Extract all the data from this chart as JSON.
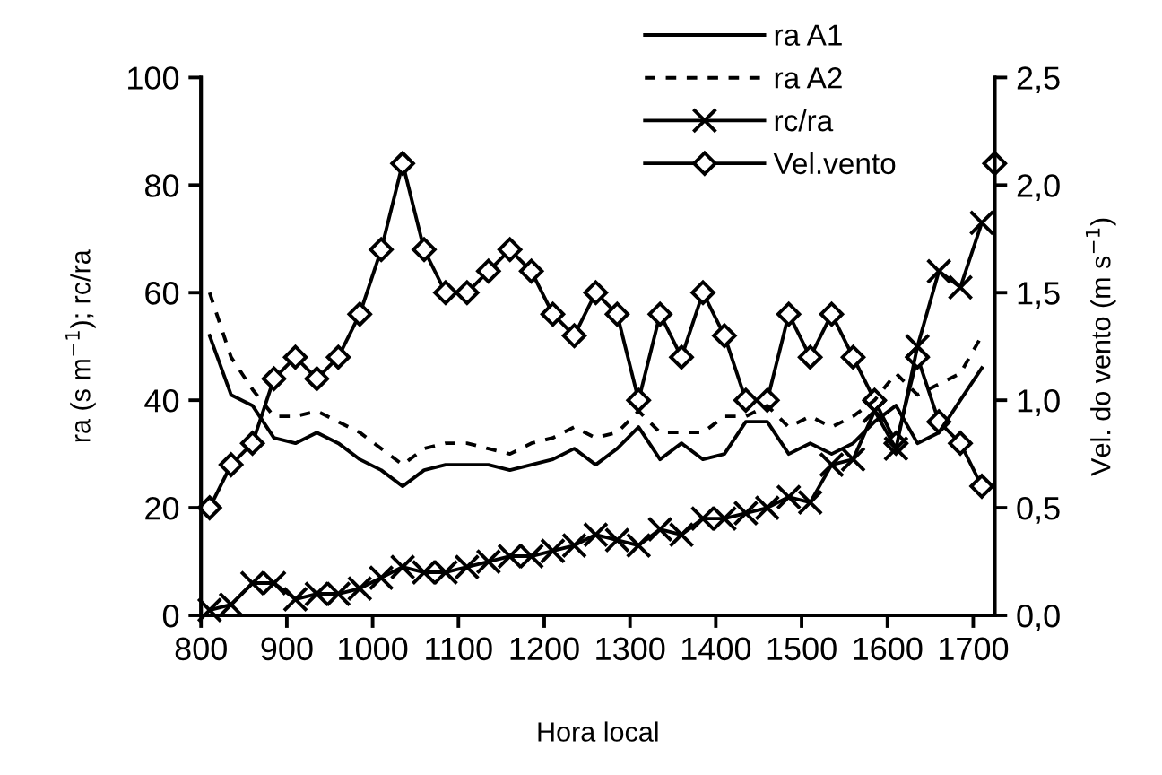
{
  "chart_data": {
    "type": "line",
    "xlabel": "Hora local",
    "ylabel": "ra (s m$^{−1}$); rc/ra",
    "y2label": "Vel. do vento (m s$^{−1}$)",
    "x": [
      810,
      835,
      860,
      885,
      910,
      935,
      960,
      985,
      1010,
      1035,
      1060,
      1085,
      1110,
      1135,
      1160,
      1185,
      1210,
      1235,
      1260,
      1285,
      1310,
      1335,
      1360,
      1385,
      1410,
      1435,
      1460,
      1485,
      1510,
      1535,
      1560,
      1585,
      1610,
      1635,
      1660,
      1685,
      1710
    ],
    "series": [
      {
        "name": "ra A1",
        "color": "#000000",
        "line_style": "solid",
        "marker": "none",
        "values": [
          52,
          41,
          39,
          33,
          32,
          34,
          32,
          29,
          27,
          24,
          27,
          28,
          28,
          28,
          27,
          28,
          29,
          31,
          28,
          31,
          35,
          29,
          32,
          29,
          30,
          36,
          36,
          30,
          32,
          30,
          32,
          36,
          39,
          32,
          34,
          40,
          46
        ]
      },
      {
        "name": "ra A2",
        "color": "#000000",
        "line_style": "dashed",
        "marker": "none",
        "values": [
          60,
          48,
          42,
          37,
          37,
          38,
          36,
          34,
          31,
          28,
          31,
          32,
          32,
          31,
          30,
          32,
          33,
          35,
          33,
          34,
          38,
          34,
          34,
          34,
          37,
          37,
          39,
          35,
          37,
          35,
          37,
          40,
          45,
          41,
          43,
          45,
          52
        ]
      },
      {
        "name": "rc/ra",
        "color": "#000000",
        "line_style": "solid",
        "marker": "cross",
        "values": [
          1,
          2,
          6,
          6,
          3,
          4,
          4,
          5,
          7,
          9,
          8,
          8,
          9,
          10,
          11,
          11,
          12,
          13,
          15,
          14,
          13,
          16,
          15,
          18,
          18,
          19,
          20,
          22,
          21,
          28,
          29,
          38,
          31,
          50,
          64,
          61,
          73
        ]
      },
      {
        "name": "Vel.vento",
        "color": "#000000",
        "line_style": "solid",
        "marker": "diamond",
        "axis": "y2",
        "x": [
          810,
          835,
          860,
          885,
          910,
          935,
          960,
          985,
          1010,
          1035,
          1060,
          1085,
          1110,
          1135,
          1160,
          1185,
          1210,
          1235,
          1260,
          1285,
          1310,
          1335,
          1360,
          1385,
          1410,
          1435,
          1460,
          1485,
          1510,
          1535,
          1560,
          1585,
          1610,
          1635,
          1660,
          1685,
          1710,
          1717,
          1725
        ],
        "values": [
          0.5,
          0.7,
          0.8,
          1.1,
          1.2,
          1.1,
          1.2,
          1.4,
          1.7,
          2.1,
          1.7,
          1.5,
          1.5,
          1.6,
          1.7,
          1.6,
          1.4,
          1.3,
          1.5,
          1.4,
          1.0,
          1.4,
          1.2,
          1.5,
          1.3,
          1.0,
          1.0,
          1.4,
          1.2,
          1.4,
          1.2,
          1.0,
          0.8,
          1.2,
          0.9,
          0.8,
          0.6,
          null,
          2.1
        ]
      }
    ],
    "xlim": [
      800,
      1725
    ],
    "xticks": [
      800,
      900,
      1000,
      1100,
      1200,
      1300,
      1400,
      1500,
      1600,
      1700
    ],
    "ylim": [
      0,
      100
    ],
    "yticks": [
      0,
      20,
      40,
      60,
      80,
      100
    ],
    "y2lim": [
      0,
      2.5
    ],
    "y2ticks": [
      {
        "value": 0,
        "label": "0,0"
      },
      {
        "value": 0.5,
        "label": "0,5"
      },
      {
        "value": 1.0,
        "label": "1,0"
      },
      {
        "value": 1.5,
        "label": "1,5"
      },
      {
        "value": 2.0,
        "label": "2,0"
      },
      {
        "value": 2.5,
        "label": "2,5"
      }
    ],
    "grid": false,
    "legend": "top right"
  }
}
